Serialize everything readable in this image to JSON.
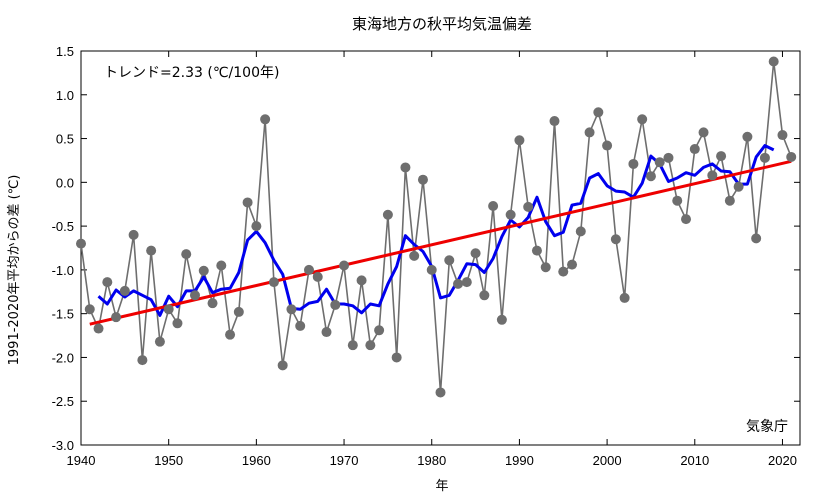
{
  "chart_data": {
    "type": "line",
    "title": "東海地方の秋平均気温偏差",
    "xlabel": "年",
    "ylabel": "1991-2020年平均からの差 (℃)",
    "trend_note": "トレンド=2.33 (℃/100年)",
    "source": "気象庁",
    "xlim": [
      1940,
      2022
    ],
    "ylim": [
      -3.0,
      1.5
    ],
    "x_ticks": [
      1940,
      1950,
      1960,
      1970,
      1980,
      1990,
      2000,
      2010,
      2020
    ],
    "x_tick_labels": [
      "1940",
      "1950",
      "1960",
      "1970",
      "1980",
      "1990",
      "2000",
      "2010",
      "2020"
    ],
    "y_ticks": [
      -3.0,
      -2.5,
      -2.0,
      -1.5,
      -1.0,
      -0.5,
      0.0,
      0.5,
      1.0,
      1.5
    ],
    "y_tick_labels": [
      "-3.0",
      "-2.5",
      "-2.0",
      "-1.5",
      "-1.0",
      "-0.5",
      "0.0",
      "0.5",
      "1.0",
      "1.5"
    ],
    "grid": false,
    "colors": {
      "annual": "#6e6e6e",
      "moving_average": "#0000ee",
      "trend": "#ee0000"
    },
    "series": [
      {
        "role": "annual",
        "x": [
          1940,
          1941,
          1942,
          1943,
          1944,
          1945,
          1946,
          1947,
          1948,
          1949,
          1950,
          1951,
          1952,
          1953,
          1954,
          1955,
          1956,
          1957,
          1958,
          1959,
          1960,
          1961,
          1962,
          1963,
          1964,
          1965,
          1966,
          1967,
          1968,
          1969,
          1970,
          1971,
          1972,
          1973,
          1974,
          1975,
          1976,
          1977,
          1978,
          1979,
          1980,
          1981,
          1982,
          1983,
          1984,
          1985,
          1986,
          1987,
          1988,
          1989,
          1990,
          1991,
          1992,
          1993,
          1994,
          1995,
          1996,
          1997,
          1998,
          1999,
          2000,
          2001,
          2002,
          2003,
          2004,
          2005,
          2006,
          2007,
          2008,
          2009,
          2010,
          2011,
          2012,
          2013,
          2014,
          2015,
          2016,
          2017,
          2018,
          2019,
          2020,
          2021
        ],
        "y": [
          -0.7,
          -1.45,
          -1.67,
          -1.14,
          -1.54,
          -1.24,
          -0.6,
          -2.03,
          -0.78,
          -1.82,
          -1.45,
          -1.61,
          -0.82,
          -1.29,
          -1.01,
          -1.38,
          -0.95,
          -1.74,
          -1.48,
          -0.23,
          -0.5,
          0.72,
          -1.14,
          -2.09,
          -1.45,
          -1.64,
          -1.0,
          -1.08,
          -1.71,
          -1.4,
          -0.95,
          -1.86,
          -1.12,
          -1.86,
          -1.69,
          -0.37,
          -2.0,
          0.17,
          -0.84,
          0.03,
          -1.0,
          -2.4,
          -0.89,
          -1.16,
          -1.14,
          -0.81,
          -1.29,
          -0.27,
          -1.57,
          -0.37,
          0.48,
          -0.28,
          -0.78,
          -0.97,
          0.7,
          -1.02,
          -0.94,
          -0.56,
          0.57,
          0.8,
          0.42,
          -0.65,
          -1.32,
          0.21,
          0.72,
          0.07,
          0.23,
          0.28,
          -0.21,
          -0.42,
          0.38,
          0.57,
          0.08,
          0.3,
          -0.21,
          -0.05,
          0.52,
          -0.64,
          0.28,
          1.38,
          0.54,
          0.29
        ]
      },
      {
        "role": "moving_average",
        "x": [
          1942,
          1943,
          1944,
          1945,
          1946,
          1947,
          1948,
          1949,
          1950,
          1951,
          1952,
          1953,
          1954,
          1955,
          1956,
          1957,
          1958,
          1959,
          1960,
          1961,
          1962,
          1963,
          1964,
          1965,
          1966,
          1967,
          1968,
          1969,
          1970,
          1971,
          1972,
          1973,
          1974,
          1975,
          1976,
          1977,
          1978,
          1979,
          1980,
          1981,
          1982,
          1983,
          1984,
          1985,
          1986,
          1987,
          1988,
          1989,
          1990,
          1991,
          1992,
          1993,
          1994,
          1995,
          1996,
          1997,
          1998,
          1999,
          2000,
          2001,
          2002,
          2003,
          2004,
          2005,
          2006,
          2007,
          2008,
          2009,
          2010,
          2011,
          2012,
          2013,
          2014,
          2015,
          2016,
          2017,
          2018,
          2019
        ],
        "y": [
          -1.3,
          -1.39,
          -1.23,
          -1.31,
          -1.24,
          -1.29,
          -1.34,
          -1.52,
          -1.3,
          -1.42,
          -1.24,
          -1.24,
          -1.08,
          -1.26,
          -1.22,
          -1.21,
          -1.03,
          -0.66,
          -0.56,
          -0.69,
          -0.89,
          -1.05,
          -1.44,
          -1.45,
          -1.38,
          -1.36,
          -1.22,
          -1.39,
          -1.39,
          -1.41,
          -1.49,
          -1.39,
          -1.41,
          -1.16,
          -0.96,
          -0.61,
          -0.71,
          -0.79,
          -0.96,
          -1.32,
          -1.29,
          -1.12,
          -0.93,
          -0.94,
          -1.03,
          -0.87,
          -0.62,
          -0.43,
          -0.51,
          -0.4,
          -0.17,
          -0.45,
          -0.61,
          -0.57,
          -0.26,
          -0.24,
          0.05,
          0.1,
          -0.04,
          -0.1,
          -0.11,
          -0.17,
          -0.01,
          0.3,
          0.21,
          0.01,
          0.05,
          0.11,
          0.08,
          0.17,
          0.21,
          0.13,
          0.12,
          -0.02,
          -0.02,
          0.29,
          0.42,
          0.37
        ]
      },
      {
        "role": "trend",
        "x": [
          1941,
          2021
        ],
        "y": [
          -1.62,
          0.24
        ]
      }
    ]
  }
}
